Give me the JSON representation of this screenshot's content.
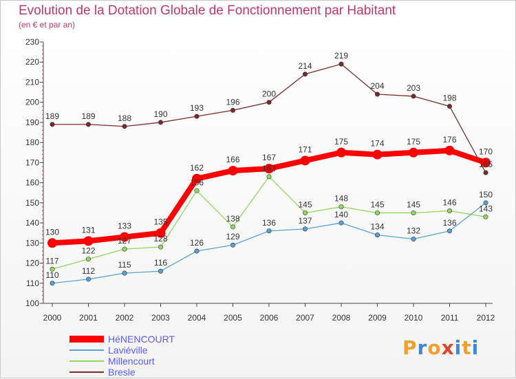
{
  "header": {
    "title": "Evolution de la Dotation Globale de Fonctionnement par Habitant",
    "subtitle": "(en € et par an)"
  },
  "logo": {
    "text": "Proxiti",
    "letters": [
      "P",
      "r",
      "o",
      "x",
      "i",
      "t",
      "i"
    ],
    "colors": [
      "#f0a030",
      "#3a8ad8",
      "#f0a030",
      "#e0442a",
      "#3a8ad8",
      "#f0a030",
      "#3a8ad8"
    ]
  },
  "chart_data": {
    "type": "line",
    "title": "Evolution de la Dotation Globale de Fonctionnement par Habitant",
    "subtitle": "(en € et par an)",
    "xlabel": "",
    "ylabel": "",
    "ylim": [
      100,
      230
    ],
    "yticks": [
      100,
      110,
      120,
      130,
      140,
      150,
      160,
      170,
      180,
      190,
      200,
      210,
      220,
      230
    ],
    "x": [
      "2000",
      "2001",
      "2002",
      "2003",
      "2004",
      "2005",
      "2006",
      "2007",
      "2008",
      "2009",
      "2010",
      "2011",
      "2012"
    ],
    "grid": false,
    "legend_position": "bottom-left",
    "series": [
      {
        "name": "Bresle",
        "color": "#7a2a2a",
        "values": [
          189,
          189,
          188,
          190,
          193,
          196,
          200,
          214,
          219,
          204,
          203,
          198,
          165
        ]
      },
      {
        "name": "Millencourt",
        "color": "#90d860",
        "values": [
          117,
          122,
          127,
          128,
          156,
          138,
          163,
          145,
          148,
          145,
          145,
          146,
          143
        ]
      },
      {
        "name": "Laviéville",
        "color": "#5aa0d8",
        "values": [
          110,
          112,
          115,
          116,
          126,
          129,
          136,
          137,
          140,
          134,
          132,
          136,
          150
        ]
      },
      {
        "name": "HéNENCOURT",
        "color": "#ff0000",
        "values": [
          130,
          131,
          133,
          135,
          162,
          166,
          167,
          171,
          175,
          174,
          175,
          176,
          170
        ]
      }
    ],
    "legend_order": [
      "HéNENCOURT",
      "Laviéville",
      "Millencourt",
      "Bresle"
    ]
  }
}
